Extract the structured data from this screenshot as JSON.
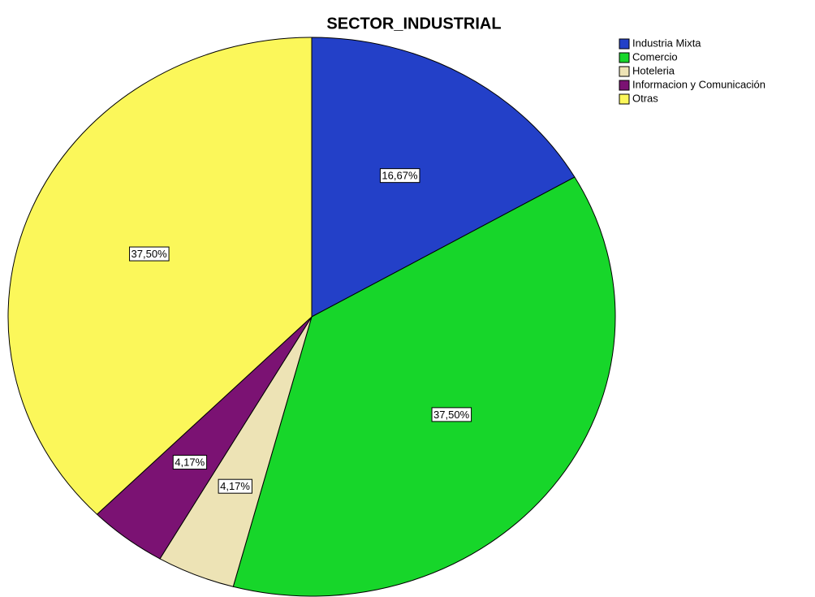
{
  "chart_data": {
    "type": "pie",
    "title": "SECTOR_INDUSTRIAL",
    "categories": [
      "Industria Mixta",
      "Comercio",
      "Hoteleria",
      "Informacion y Comunicación",
      "Otras"
    ],
    "values": [
      16.67,
      37.5,
      4.17,
      4.17,
      37.5
    ],
    "value_labels": [
      "16,67%",
      "37,50%",
      "4,17%",
      "4,17%",
      "37,50%"
    ],
    "colors": [
      "#2340c8",
      "#17d62a",
      "#ede3b5",
      "#7b1273",
      "#fbf75a"
    ],
    "legend": "top-right"
  }
}
